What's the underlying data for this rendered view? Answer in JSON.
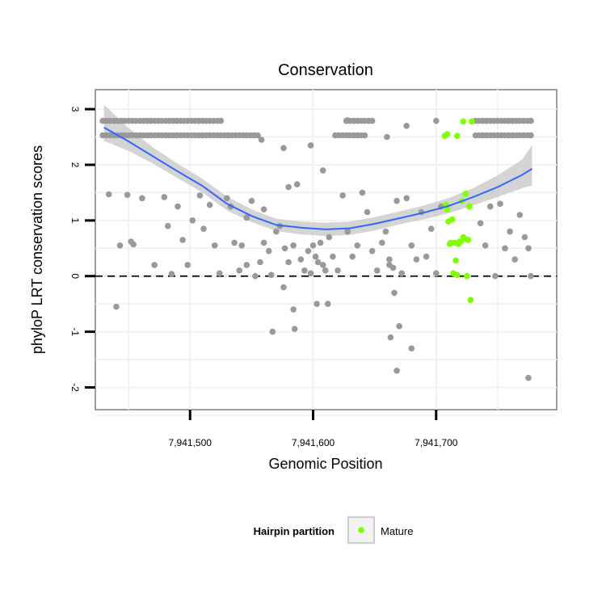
{
  "chart_data": {
    "type": "scatter",
    "title": "Conservation",
    "xlabel": "Genomic Position",
    "ylabel": "phyloP LRT conservation scores",
    "xlim": [
      7941423,
      7941798
    ],
    "ylim": [
      -2.4,
      3.35
    ],
    "x_ticks": [
      7941500,
      7941600,
      7941700
    ],
    "x_tick_labels": [
      "7,941,500",
      "7,941,600",
      "7,941,700"
    ],
    "y_ticks": [
      -2,
      -1,
      0,
      1,
      2,
      3
    ],
    "y_tick_labels": [
      "-2",
      "-1",
      "0",
      "1",
      "2",
      "3"
    ],
    "reference_line_y": 0,
    "grid": true,
    "legend": {
      "title": "Hairpin partition",
      "placement": "bottom",
      "entries": [
        {
          "label": "Mature",
          "color": "#7fff00"
        }
      ]
    },
    "colors": {
      "background": "#000000",
      "mature": "#7fff00",
      "smooth": "#3366ff",
      "ribbon": "#cccccc"
    },
    "smooth_line": {
      "x": [
        7941430,
        7941450,
        7941470,
        7941490,
        7941510,
        7941530,
        7941550,
        7941570,
        7941590,
        7941610,
        7941630,
        7941650,
        7941670,
        7941690,
        7941710,
        7941730,
        7941750,
        7941770,
        7941778
      ],
      "y": [
        2.67,
        2.42,
        2.15,
        1.88,
        1.62,
        1.3,
        1.08,
        0.92,
        0.87,
        0.84,
        0.86,
        0.94,
        1.04,
        1.14,
        1.26,
        1.42,
        1.6,
        1.82,
        1.93
      ],
      "lower": [
        2.43,
        2.25,
        2.02,
        1.76,
        1.5,
        1.18,
        0.97,
        0.81,
        0.75,
        0.72,
        0.74,
        0.82,
        0.93,
        1.02,
        1.13,
        1.27,
        1.42,
        1.58,
        1.63
      ],
      "upper": [
        3.08,
        2.66,
        2.31,
        2.02,
        1.75,
        1.43,
        1.2,
        1.03,
        0.98,
        0.96,
        0.98,
        1.06,
        1.16,
        1.27,
        1.4,
        1.58,
        1.81,
        2.1,
        2.35
      ]
    },
    "series": [
      {
        "name": "",
        "x": [
          7941434,
          7941440,
          7941443,
          7941449,
          7941452,
          7941454,
          7941461,
          7941471,
          7941479,
          7941485,
          7941490,
          7941494,
          7941498,
          7941502,
          7941508,
          7941511,
          7941516,
          7941520,
          7941524,
          7941530,
          7941533,
          7941536,
          7941540,
          7941542,
          7941546,
          7941550,
          7941553,
          7941557,
          7941560,
          7941564,
          7941566,
          7941570,
          7941573,
          7941577,
          7941580,
          7941584,
          7941587,
          7941590,
          7941593,
          7941596,
          7941598,
          7941600,
          7941602,
          7941604,
          7941606,
          7941608,
          7941610,
          7941613,
          7941616,
          7941620,
          7941624,
          7941628,
          7941632,
          7941636,
          7941640,
          7941644,
          7941648,
          7941652,
          7941656,
          7941659,
          7941662,
          7941665,
          7941668,
          7941672,
          7941676,
          7941680,
          7941684,
          7941688,
          7941692,
          7941696,
          7941700,
          7941704,
          7941736,
          7941740,
          7941744,
          7941748,
          7941752,
          7941756,
          7941760,
          7941764,
          7941768,
          7941772,
          7941775,
          7941777,
          7941567,
          7941585,
          7941603,
          7941584,
          7941612,
          7941663,
          7941668,
          7941670,
          7941680,
          7941662,
          7941666,
          7941676,
          7941580,
          7941558,
          7941598,
          7941628,
          7941576,
          7941608,
          7941660,
          7941482,
          7941546,
          7941560,
          7941576
        ],
        "y": [
          1.47,
          -0.55,
          0.55,
          1.46,
          0.62,
          0.57,
          1.4,
          0.2,
          1.42,
          0.04,
          1.25,
          0.65,
          0.2,
          1.0,
          1.45,
          0.85,
          1.28,
          0.55,
          0.05,
          1.4,
          1.25,
          0.6,
          0.1,
          0.55,
          0.2,
          1.35,
          0.0,
          0.25,
          1.2,
          0.45,
          0.02,
          0.8,
          0.9,
          0.5,
          0.25,
          0.55,
          1.65,
          0.3,
          0.1,
          0.45,
          0.05,
          0.55,
          0.35,
          0.25,
          0.6,
          0.2,
          0.1,
          0.7,
          0.35,
          0.1,
          1.45,
          0.8,
          0.35,
          0.55,
          1.5,
          1.15,
          0.45,
          0.1,
          0.6,
          0.8,
          0.3,
          0.15,
          1.35,
          0.05,
          1.4,
          0.55,
          0.3,
          1.15,
          0.35,
          0.85,
          0.05,
          1.25,
          0.95,
          0.55,
          1.25,
          0.0,
          1.3,
          0.5,
          0.8,
          0.3,
          1.1,
          0.7,
          0.5,
          0.0,
          -1.0,
          -0.95,
          -0.5,
          -0.6,
          -0.5,
          -1.1,
          -1.7,
          -0.9,
          -1.3,
          0.2,
          -0.3,
          2.7,
          1.6,
          2.45,
          2.35,
          2.8,
          2.3,
          1.9,
          2.5,
          0.9,
          1.05,
          0.6,
          -0.2
        ]
      },
      {
        "name": "",
        "x": [
          7941775
        ],
        "y": [
          -1.83
        ]
      },
      {
        "name": "Mature",
        "x": [
          7941707,
          7941708,
          7941710,
          7941712,
          7941714,
          7941716,
          7941718,
          7941720,
          7941722,
          7941724,
          7941726,
          7941728,
          7941709,
          7941711,
          7941713,
          7941715,
          7941717,
          7941719,
          7941721,
          7941723,
          7941725,
          7941727,
          7941709,
          7941717,
          7941722,
          7941729
        ],
        "y": [
          2.52,
          1.28,
          0.98,
          0.6,
          0.05,
          0.28,
          0.58,
          0.62,
          0.7,
          1.48,
          0.65,
          -0.43,
          1.2,
          0.58,
          1.02,
          0.6,
          0.02,
          0.62,
          1.35,
          0.68,
          0.0,
          1.25,
          2.55,
          2.52,
          2.78,
          2.78
        ]
      }
    ],
    "band_points": {
      "upper_y": 2.79,
      "lower_y": 2.53,
      "upper_ranges": [
        [
          7941429,
          7941526
        ],
        [
          7941627,
          7941648
        ],
        [
          7941700,
          7941702
        ],
        [
          7941732,
          7941778
        ]
      ],
      "lower_ranges": [
        [
          7941429,
          7941556
        ],
        [
          7941618,
          7941643
        ],
        [
          7941732,
          7941778
        ]
      ],
      "step": 3
    }
  }
}
